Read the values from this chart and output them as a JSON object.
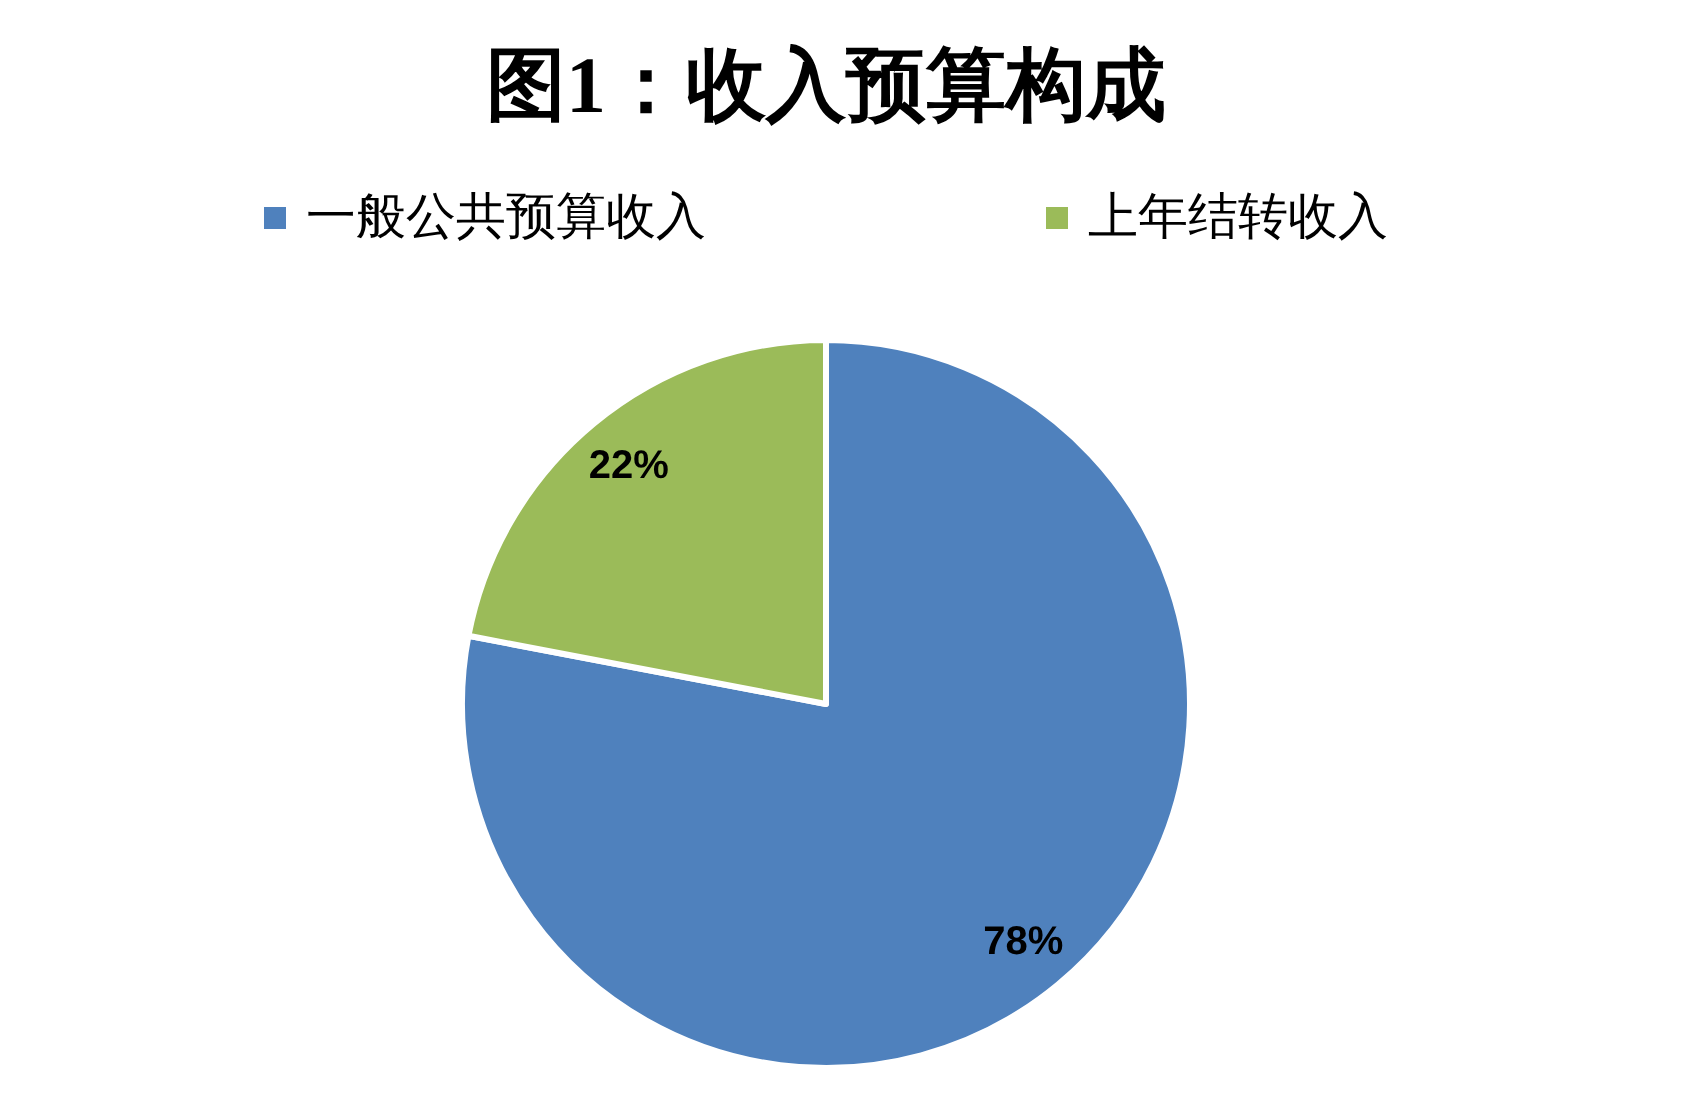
{
  "chart_data": {
    "type": "pie",
    "title": "图1：收入预算构成",
    "categories": [
      "一般公共预算收入",
      "上年结转收入"
    ],
    "values": [
      78,
      22
    ],
    "colors": [
      "#4f81bd",
      "#9bbb59"
    ],
    "value_labels": [
      "78%",
      "22%"
    ],
    "legend": "top"
  }
}
